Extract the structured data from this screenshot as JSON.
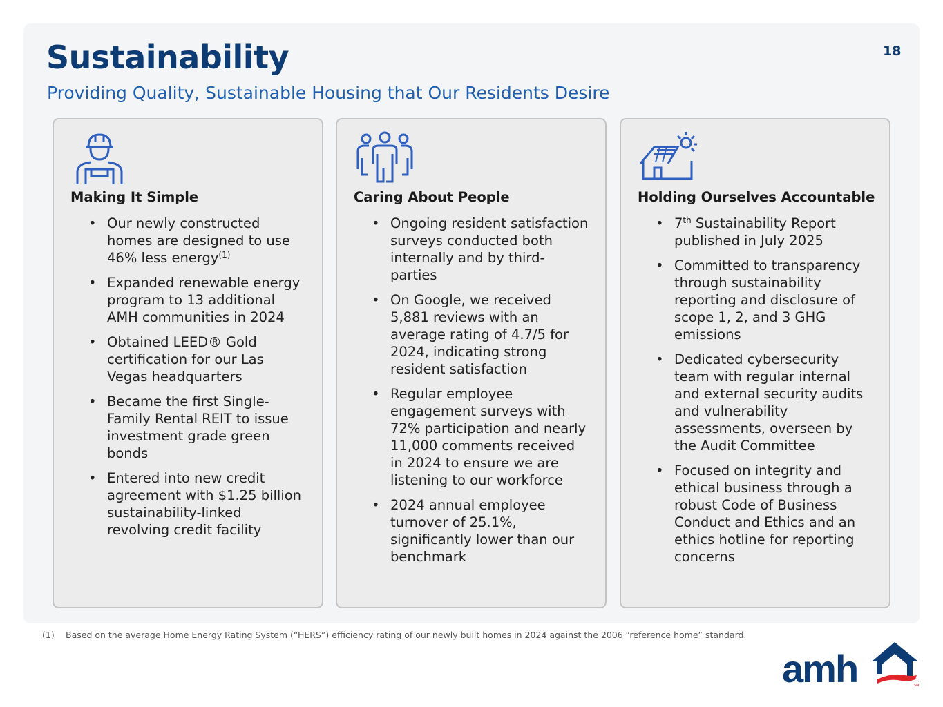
{
  "header": {
    "title": "Sustainability",
    "subtitle": "Providing Quality, Sustainable Housing that Our Residents Desire",
    "page_number": "18"
  },
  "cards": [
    {
      "icon": "construction-worker-icon",
      "heading": "Making It Simple",
      "bullets": [
        {
          "text": "Our newly constructed homes are designed to use 46% less energy",
          "sup": "(1)"
        },
        {
          "text": "Expanded renewable energy program to 13 additional AMH communities in 2024"
        },
        {
          "text": "Obtained LEED® Gold certification for our Las Vegas headquarters"
        },
        {
          "text": "Became the first Single-Family Rental REIT to issue investment grade green bonds"
        },
        {
          "text": "Entered into new credit agreement with $1.25 billion sustainability-linked revolving credit facility"
        }
      ]
    },
    {
      "icon": "people-group-icon",
      "heading": "Caring About People",
      "bullets": [
        {
          "text": "Ongoing resident satisfaction surveys conducted both internally and by third-parties"
        },
        {
          "text": "On Google, we received 5,881 reviews with an average rating of 4.7/5 for 2024, indicating strong resident satisfaction"
        },
        {
          "text": "Regular employee engagement surveys with 72% participation and nearly 11,000 comments received in 2024 to ensure we are listening to our workforce"
        },
        {
          "text": "2024 annual employee turnover of 25.1%, significantly lower than our benchmark"
        }
      ]
    },
    {
      "icon": "solar-house-icon",
      "heading": "Holding Ourselves Accountable",
      "bullets": [
        {
          "prefix": "7",
          "prefix_sup": "th",
          "text": " Sustainability Report published in July 2025"
        },
        {
          "text": "Committed to transparency through sustainability reporting and disclosure of scope 1, 2, and 3 GHG emissions"
        },
        {
          "text": "Dedicated cybersecurity team with regular internal and external security audits and vulnerability assessments, overseen by the Audit Committee"
        },
        {
          "text": "Focused on integrity and ethical business through a robust Code of Business Conduct and Ethics and an ethics hotline for reporting concerns"
        }
      ]
    }
  ],
  "footnote": {
    "marker": "(1)",
    "text": "Based on the average Home Energy Rating System (“HERS”) efficiency rating of our newly built homes in 2024 against the 2006 “reference home” standard."
  },
  "logo": {
    "text": "amh",
    "mark": "SM"
  },
  "colors": {
    "navy": "#0d3b73",
    "blue": "#1f5fae",
    "icon": "#2f5fbf",
    "red": "#e0262b"
  }
}
